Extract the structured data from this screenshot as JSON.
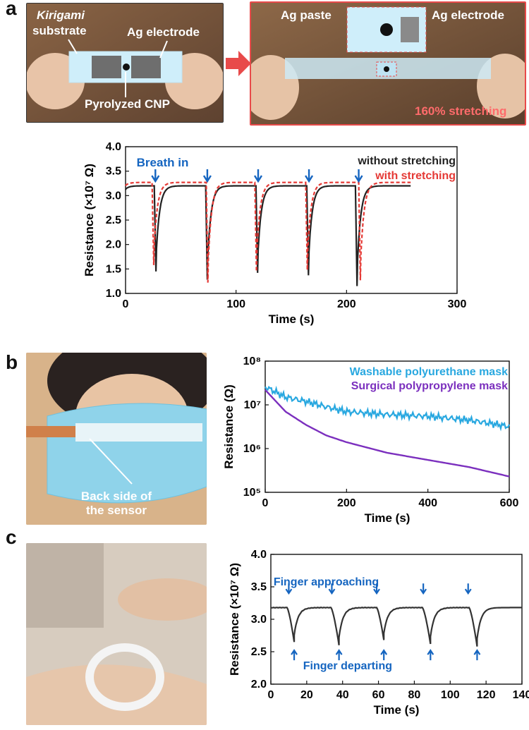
{
  "panels": {
    "a": {
      "letter": "a",
      "photo1": {
        "kirigami": "Kirigami",
        "substrate": "substrate",
        "ag_electrode": "Ag electrode",
        "pyrolyzed": "Pyrolyzed CNP"
      },
      "photo2": {
        "ag_paste": "Ag paste",
        "ag_electrode": "Ag electrode",
        "stretching": "160% stretching"
      }
    },
    "b": {
      "letter": "b",
      "photo": {
        "line1": "Back side of",
        "line2": "the sensor"
      }
    },
    "c": {
      "letter": "c"
    }
  },
  "colors": {
    "blue": "#1565c0",
    "red": "#e53935",
    "black": "#222222",
    "cyan": "#29a8e0",
    "purple": "#7b2fbe"
  },
  "chart_data": [
    {
      "id": "a",
      "type": "line",
      "xlabel": "Time (s)",
      "ylabel": "Resistance (×10⁷ Ω)",
      "xlim": [
        0,
        300
      ],
      "ylim": [
        1.0,
        4.0
      ],
      "xticks": [
        "0",
        "100",
        "200",
        "300"
      ],
      "yticks": [
        "1.0",
        "1.5",
        "2.0",
        "2.5",
        "3.0",
        "3.5",
        "4.0"
      ],
      "annotation": "Breath in",
      "arrow_times": [
        27,
        74,
        120,
        166,
        211
      ],
      "series": [
        {
          "name": "without stretching",
          "color": "#222222",
          "dash": false,
          "baseline": 3.2,
          "start": 3.12,
          "end_time": 258,
          "dips": [
            {
              "t": 26,
              "min": 1.45
            },
            {
              "t": 72.5,
              "min": 1.28
            },
            {
              "t": 118,
              "min": 1.42
            },
            {
              "t": 164,
              "min": 1.37
            },
            {
              "t": 208,
              "min": 1.15
            }
          ]
        },
        {
          "name": "with stretching",
          "color": "#e53935",
          "dash": true,
          "baseline": 3.27,
          "start": 3.2,
          "end_time": 258,
          "dips": [
            {
              "t": 24,
              "min": 1.58
            },
            {
              "t": 73,
              "min": 1.22
            },
            {
              "t": 117,
              "min": 1.45
            },
            {
              "t": 163,
              "min": 1.48
            },
            {
              "t": 211,
              "min": 1.27
            }
          ]
        }
      ]
    },
    {
      "id": "b",
      "type": "line",
      "xlabel": "Time (s)",
      "ylabel": "Resistance (Ω)",
      "xlim": [
        0,
        600
      ],
      "ylim_log10": [
        5,
        8
      ],
      "xticks": [
        "0",
        "200",
        "400",
        "600"
      ],
      "yticks": [
        "10⁵",
        "10⁶",
        "10⁷",
        "10⁸"
      ],
      "series": [
        {
          "name": "Washable polyurethane mask",
          "color": "#29a8e0",
          "points": [
            [
              0,
              26000000.0
            ],
            [
              50,
              15000000.0
            ],
            [
              100,
              12000000.0
            ],
            [
              150,
              9000000.0
            ],
            [
              200,
              7000000.0
            ],
            [
              300,
              6000000.0
            ],
            [
              400,
              5500000.0
            ],
            [
              500,
              4500000.0
            ],
            [
              600,
              3200000.0
            ]
          ]
        },
        {
          "name": "Surgical polypropylene mask",
          "color": "#7b2fbe",
          "points": [
            [
              0,
              22000000.0
            ],
            [
              50,
              7000000.0
            ],
            [
              100,
              3500000.0
            ],
            [
              150,
              2000000.0
            ],
            [
              200,
              1400000.0
            ],
            [
              300,
              800000.0
            ],
            [
              400,
              550000.0
            ],
            [
              500,
              380000.0
            ],
            [
              600,
              230000.0
            ]
          ]
        }
      ]
    },
    {
      "id": "c",
      "type": "line",
      "xlabel": "Time (s)",
      "ylabel": "Resistance (×10⁷ Ω)",
      "xlim": [
        0,
        140
      ],
      "ylim": [
        2.0,
        4.0
      ],
      "xticks": [
        "0",
        "20",
        "40",
        "60",
        "80",
        "100",
        "120",
        "140"
      ],
      "yticks": [
        "2.0",
        "2.5",
        "3.0",
        "3.5",
        "4.0"
      ],
      "annotations": {
        "approach": "Finger approaching",
        "depart": "Finger departing"
      },
      "approach_times": [
        10,
        34,
        59,
        85,
        110
      ],
      "depart_times": [
        13,
        38,
        63,
        89,
        115
      ],
      "series": [
        {
          "name": "",
          "color": "#333333",
          "baseline": 3.18,
          "start_time": 0,
          "end_time": 140,
          "dips": [
            {
              "t": 9,
              "tmin": 13,
              "min": 2.65
            },
            {
              "t": 33.5,
              "tmin": 38,
              "min": 2.6
            },
            {
              "t": 59,
              "tmin": 63,
              "min": 2.68
            },
            {
              "t": 84.5,
              "tmin": 89,
              "min": 2.62
            },
            {
              "t": 110.5,
              "tmin": 115,
              "min": 2.58
            }
          ]
        }
      ]
    }
  ]
}
